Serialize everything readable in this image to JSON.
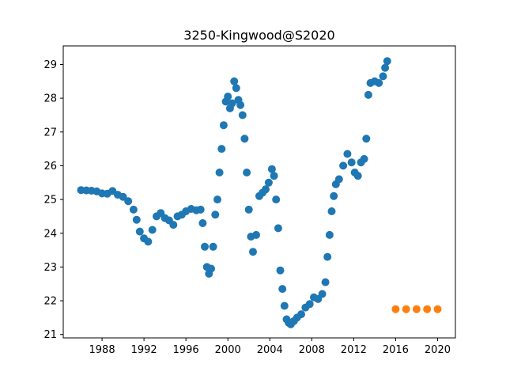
{
  "chart_data": {
    "type": "scatter",
    "title": "3250-Kingwood@S2020",
    "xlabel": "",
    "ylabel": "",
    "xlim": [
      1984.3,
      2021.7
    ],
    "ylim": [
      20.9,
      29.55
    ],
    "xticks": [
      1988,
      1992,
      1996,
      2000,
      2004,
      2008,
      2012,
      2016,
      2020
    ],
    "yticks": [
      21,
      22,
      23,
      24,
      25,
      26,
      27,
      28,
      29
    ],
    "grid": false,
    "colors": [
      "#1f77b4",
      "#ff7f0e"
    ],
    "series": [
      {
        "points": [
          [
            1986.0,
            25.28
          ],
          [
            1986.5,
            25.27
          ],
          [
            1987.0,
            25.26
          ],
          [
            1987.5,
            25.24
          ],
          [
            1988.0,
            25.18
          ],
          [
            1988.5,
            25.17
          ],
          [
            1989.0,
            25.25
          ],
          [
            1989.5,
            25.14
          ],
          [
            1990.0,
            25.08
          ],
          [
            1990.5,
            24.95
          ],
          [
            1991.0,
            24.7
          ],
          [
            1991.3,
            24.4
          ],
          [
            1991.6,
            24.05
          ],
          [
            1992.0,
            23.85
          ],
          [
            1992.4,
            23.75
          ],
          [
            1992.8,
            24.1
          ],
          [
            1993.2,
            24.5
          ],
          [
            1993.6,
            24.6
          ],
          [
            1994.0,
            24.45
          ],
          [
            1994.4,
            24.38
          ],
          [
            1994.8,
            24.25
          ],
          [
            1995.2,
            24.5
          ],
          [
            1995.6,
            24.55
          ],
          [
            1996.0,
            24.65
          ],
          [
            1996.5,
            24.72
          ],
          [
            1997.0,
            24.68
          ],
          [
            1997.4,
            24.7
          ],
          [
            1997.6,
            24.3
          ],
          [
            1997.8,
            23.6
          ],
          [
            1998.0,
            23.0
          ],
          [
            1998.2,
            22.8
          ],
          [
            1998.4,
            22.95
          ],
          [
            1998.6,
            23.6
          ],
          [
            1998.8,
            24.55
          ],
          [
            1999.0,
            25.0
          ],
          [
            1999.2,
            25.8
          ],
          [
            1999.4,
            26.5
          ],
          [
            1999.6,
            27.2
          ],
          [
            1999.8,
            27.9
          ],
          [
            2000.0,
            28.05
          ],
          [
            2000.2,
            27.7
          ],
          [
            2000.4,
            27.85
          ],
          [
            2000.6,
            28.5
          ],
          [
            2000.8,
            28.3
          ],
          [
            2001.0,
            27.95
          ],
          [
            2001.2,
            27.8
          ],
          [
            2001.4,
            27.5
          ],
          [
            2001.6,
            26.8
          ],
          [
            2001.8,
            25.8
          ],
          [
            2002.0,
            24.7
          ],
          [
            2002.2,
            23.9
          ],
          [
            2002.4,
            23.45
          ],
          [
            2002.7,
            23.95
          ],
          [
            2003.0,
            25.1
          ],
          [
            2003.3,
            25.2
          ],
          [
            2003.6,
            25.3
          ],
          [
            2003.9,
            25.5
          ],
          [
            2004.2,
            25.9
          ],
          [
            2004.4,
            25.7
          ],
          [
            2004.6,
            25.0
          ],
          [
            2004.8,
            24.15
          ],
          [
            2005.0,
            22.9
          ],
          [
            2005.2,
            22.35
          ],
          [
            2005.4,
            21.85
          ],
          [
            2005.6,
            21.45
          ],
          [
            2005.8,
            21.35
          ],
          [
            2006.0,
            21.3
          ],
          [
            2006.3,
            21.4
          ],
          [
            2006.6,
            21.5
          ],
          [
            2007.0,
            21.6
          ],
          [
            2007.4,
            21.8
          ],
          [
            2007.8,
            21.9
          ],
          [
            2008.2,
            22.1
          ],
          [
            2008.6,
            22.05
          ],
          [
            2009.0,
            22.2
          ],
          [
            2009.3,
            22.55
          ],
          [
            2009.5,
            23.3
          ],
          [
            2009.7,
            23.95
          ],
          [
            2009.9,
            24.65
          ],
          [
            2010.1,
            25.1
          ],
          [
            2010.3,
            25.45
          ],
          [
            2010.6,
            25.6
          ],
          [
            2011.0,
            26.0
          ],
          [
            2011.4,
            26.35
          ],
          [
            2011.8,
            26.1
          ],
          [
            2012.1,
            25.8
          ],
          [
            2012.4,
            25.7
          ],
          [
            2012.7,
            26.1
          ],
          [
            2013.0,
            26.2
          ],
          [
            2013.2,
            26.8
          ],
          [
            2013.4,
            28.1
          ],
          [
            2013.6,
            28.45
          ],
          [
            2014.0,
            28.5
          ],
          [
            2014.4,
            28.45
          ],
          [
            2014.8,
            28.65
          ],
          [
            2015.0,
            28.9
          ],
          [
            2015.2,
            29.1
          ]
        ]
      },
      {
        "points": [
          [
            2016.0,
            21.75
          ],
          [
            2017.0,
            21.75
          ],
          [
            2018.0,
            21.75
          ],
          [
            2019.0,
            21.75
          ],
          [
            2020.0,
            21.75
          ]
        ]
      }
    ]
  }
}
